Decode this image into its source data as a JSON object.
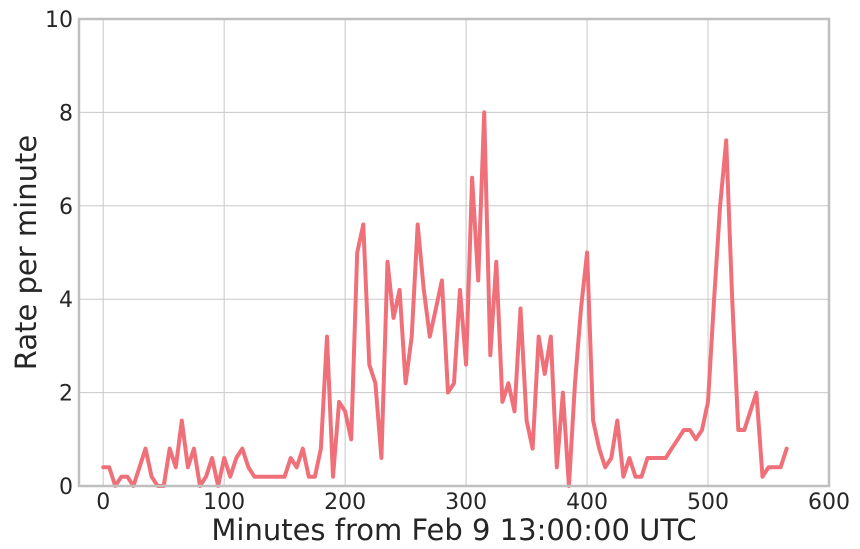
{
  "chart_data": {
    "type": "line",
    "title": "",
    "xlabel": "Minutes from Feb 9 13:00:00 UTC",
    "ylabel": "Rate per minute",
    "xlim": [
      -20,
      600
    ],
    "ylim": [
      0,
      10
    ],
    "xticks": [
      0,
      100,
      200,
      300,
      400,
      500,
      600
    ],
    "yticks": [
      0,
      2,
      4,
      6,
      8,
      10
    ],
    "xtick_labels": [
      "0",
      "100",
      "200",
      "300",
      "400",
      "500",
      "600"
    ],
    "ytick_labels": [
      "0",
      "2",
      "4",
      "6",
      "8",
      "10"
    ],
    "grid": true,
    "series": [
      {
        "color": "#f0707a",
        "x": [
          0,
          5,
          10,
          15,
          20,
          25,
          30,
          35,
          40,
          45,
          50,
          55,
          60,
          65,
          70,
          75,
          80,
          85,
          90,
          95,
          100,
          105,
          110,
          115,
          120,
          125,
          130,
          135,
          140,
          145,
          150,
          155,
          160,
          165,
          170,
          175,
          180,
          185,
          190,
          195,
          200,
          205,
          210,
          215,
          220,
          225,
          230,
          235,
          240,
          245,
          250,
          255,
          260,
          265,
          270,
          275,
          280,
          285,
          290,
          295,
          300,
          305,
          310,
          315,
          320,
          325,
          330,
          335,
          340,
          345,
          350,
          355,
          360,
          365,
          370,
          375,
          380,
          385,
          390,
          395,
          400,
          405,
          410,
          415,
          420,
          425,
          430,
          435,
          440,
          445,
          450,
          455,
          460,
          465,
          470,
          475,
          480,
          485,
          490,
          495,
          500,
          505,
          510,
          515,
          520,
          525,
          530,
          535,
          540,
          545,
          550,
          555,
          560,
          565
        ],
        "y": [
          0.4,
          0.4,
          0.0,
          0.2,
          0.2,
          0.0,
          0.4,
          0.8,
          0.2,
          0.0,
          0.0,
          0.8,
          0.4,
          1.4,
          0.4,
          0.8,
          0.0,
          0.2,
          0.6,
          0.0,
          0.6,
          0.2,
          0.6,
          0.8,
          0.4,
          0.2,
          0.2,
          0.2,
          0.2,
          0.2,
          0.2,
          0.6,
          0.4,
          0.8,
          0.2,
          0.2,
          0.8,
          3.2,
          0.2,
          1.8,
          1.6,
          1.0,
          5.0,
          5.6,
          2.6,
          2.2,
          0.6,
          4.8,
          3.6,
          4.2,
          2.2,
          3.2,
          5.6,
          4.2,
          3.2,
          3.8,
          4.4,
          2.0,
          2.2,
          4.2,
          2.6,
          6.6,
          4.4,
          8.0,
          2.8,
          4.8,
          1.8,
          2.2,
          1.6,
          3.8,
          1.4,
          0.8,
          3.2,
          2.4,
          3.2,
          0.4,
          2.0,
          0.0,
          2.2,
          3.8,
          5.0,
          1.4,
          0.8,
          0.4,
          0.6,
          1.4,
          0.2,
          0.6,
          0.2,
          0.2,
          0.6,
          0.6,
          0.6,
          0.6,
          0.8,
          1.0,
          1.2,
          1.2,
          1.0,
          1.2,
          1.8,
          4.0,
          6.0,
          7.4,
          4.0,
          1.2,
          1.2,
          1.6,
          2.0,
          0.2,
          0.4,
          0.4,
          0.4,
          0.8
        ]
      }
    ]
  }
}
